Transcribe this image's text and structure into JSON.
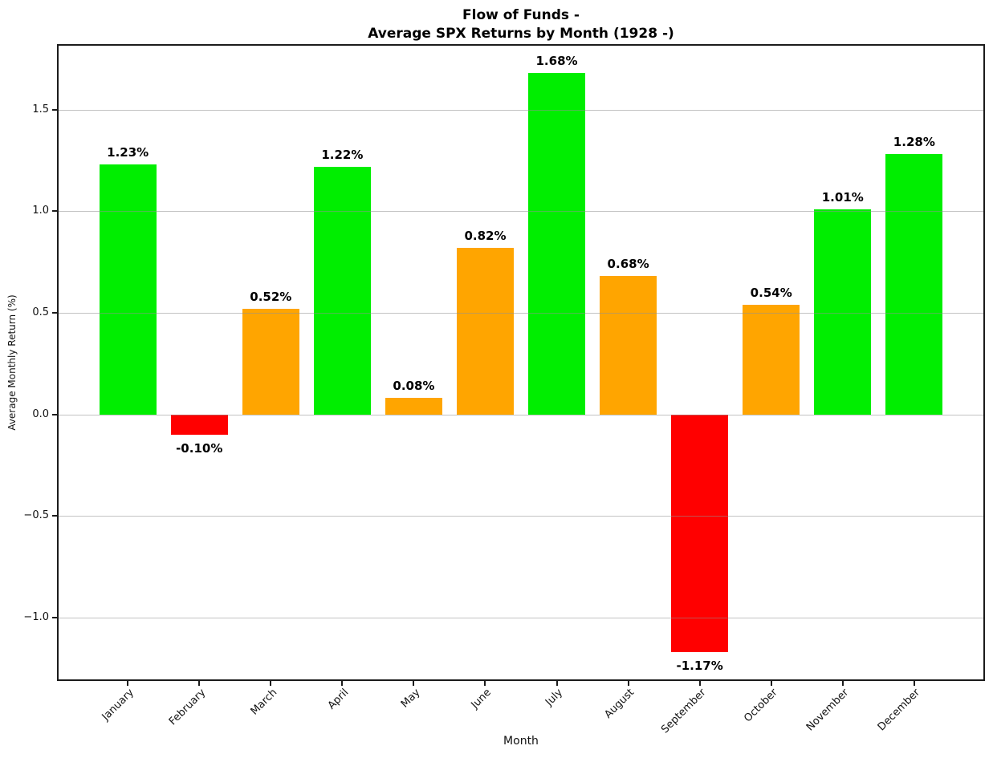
{
  "figure": {
    "title_line1": "Flow of Funds -",
    "title_line2": "Average SPX Returns by Month (1928 -)",
    "xlabel": "Month",
    "ylabel": "Average Monthly Return (%)"
  },
  "chart_data": {
    "type": "bar",
    "title": "Flow of Funds -\nAverage SPX Returns by Month (1928 -)",
    "xlabel": "Month",
    "ylabel": "Average Monthly Return (%)",
    "categories": [
      "January",
      "February",
      "March",
      "April",
      "May",
      "June",
      "July",
      "August",
      "September",
      "October",
      "November",
      "December"
    ],
    "values": [
      1.23,
      -0.1,
      0.52,
      1.22,
      0.08,
      0.82,
      1.68,
      0.68,
      -1.17,
      0.54,
      1.01,
      1.28
    ],
    "value_labels": [
      "1.23%",
      "-0.10%",
      "0.52%",
      "1.22%",
      "0.08%",
      "0.82%",
      "1.68%",
      "0.68%",
      "-1.17%",
      "0.54%",
      "1.01%",
      "1.28%"
    ],
    "bar_colors": [
      "#00EE00",
      "#FF0000",
      "#FFA500",
      "#00EE00",
      "#FFA500",
      "#FFA500",
      "#00EE00",
      "#FFA500",
      "#FF0000",
      "#FFA500",
      "#00EE00",
      "#00EE00"
    ],
    "color_meaning": {
      "green_return_1pct_or_more": "#00EE00",
      "orange_return_0_to_1pct": "#FFA500",
      "red_negative_return": "#FF0000"
    },
    "yticks": [
      {
        "v": -1.0,
        "label": "−1.0"
      },
      {
        "v": -0.5,
        "label": "−0.5"
      },
      {
        "v": 0.0,
        "label": "0.0"
      },
      {
        "v": 0.5,
        "label": "0.5"
      },
      {
        "v": 1.0,
        "label": "1.0"
      },
      {
        "v": 1.5,
        "label": "1.5"
      }
    ],
    "ylim": [
      -1.3125,
      1.8225
    ],
    "xlim": [
      -0.99,
      11.99
    ],
    "bar_width": 0.8,
    "grid": "y",
    "grid_on_top_of_bars": true,
    "legend": "none",
    "x_tick_label_rotation_deg": 45
  }
}
